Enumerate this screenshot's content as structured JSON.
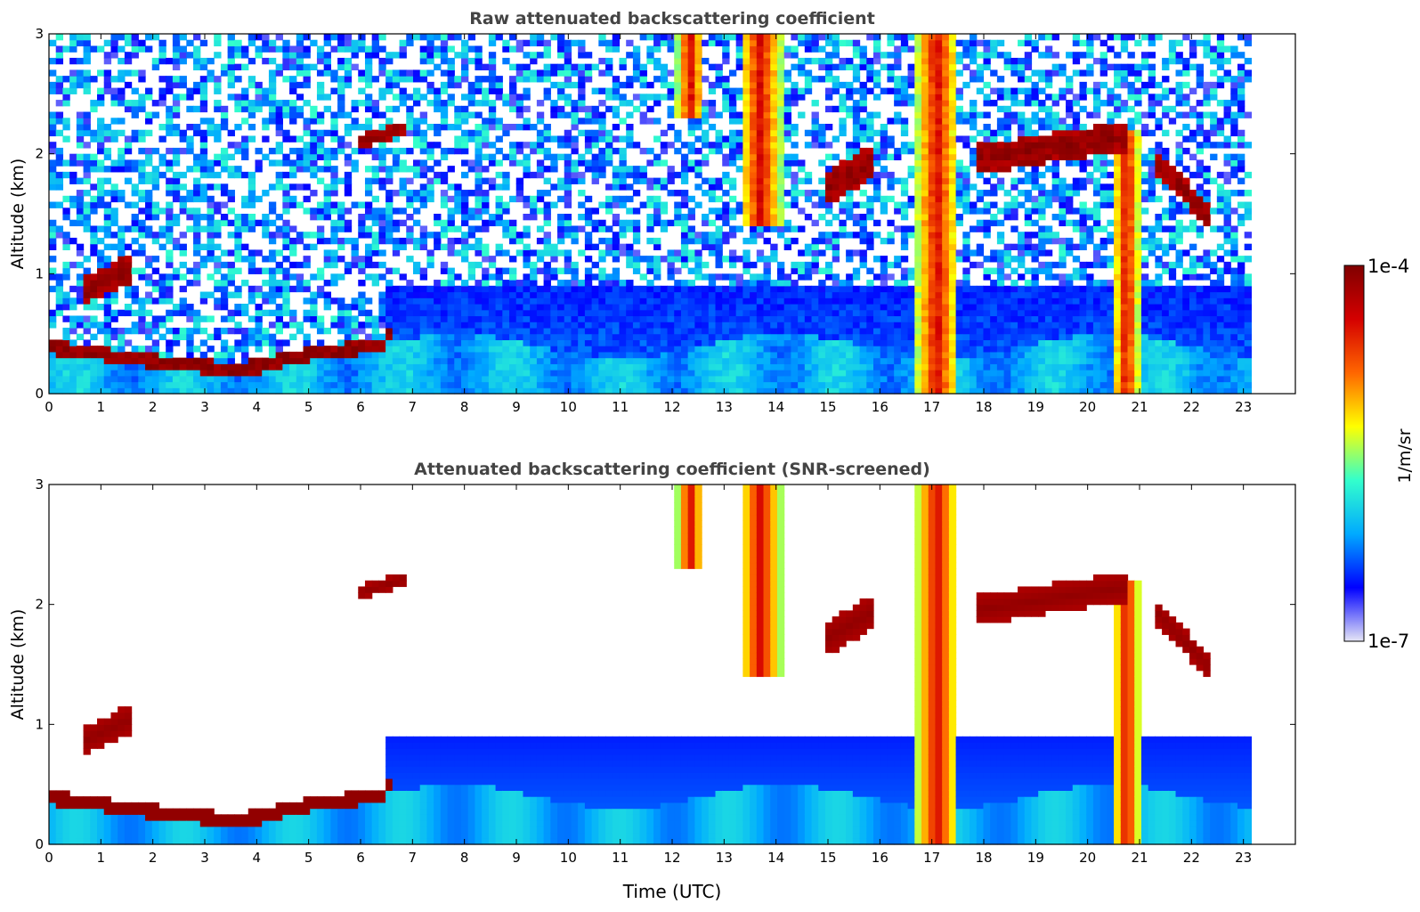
{
  "chart_data": [
    {
      "type": "heatmap",
      "title": "Raw attenuated backscattering coefficient",
      "xlabel": "",
      "ylabel": "Altitude (km)",
      "xlim": [
        0,
        24
      ],
      "ylim": [
        0,
        3
      ],
      "xticks": [
        "0",
        "1",
        "2",
        "3",
        "4",
        "5",
        "6",
        "7",
        "8",
        "9",
        "10",
        "11",
        "12",
        "13",
        "14",
        "15",
        "16",
        "17",
        "18",
        "19",
        "20",
        "21",
        "22",
        "23"
      ],
      "yticks": [
        "0",
        "1",
        "2",
        "3"
      ],
      "screened": false
    },
    {
      "type": "heatmap",
      "title": "Attenuated backscattering coefficient (SNR-screened)",
      "xlabel": "Time (UTC)",
      "ylabel": "Altitude (km)",
      "xlim": [
        0,
        24
      ],
      "ylim": [
        0,
        3
      ],
      "xticks": [
        "0",
        "1",
        "2",
        "3",
        "4",
        "5",
        "6",
        "7",
        "8",
        "9",
        "10",
        "11",
        "12",
        "13",
        "14",
        "15",
        "16",
        "17",
        "18",
        "19",
        "20",
        "21",
        "22",
        "23"
      ],
      "yticks": [
        "0",
        "1",
        "2",
        "3"
      ],
      "screened": true
    }
  ],
  "features": {
    "data_end_hour": 23.15,
    "boundary_layer_top": [
      [
        0,
        0.38
      ],
      [
        0.5,
        0.36
      ],
      [
        1,
        0.33
      ],
      [
        1.5,
        0.3
      ],
      [
        2,
        0.27
      ],
      [
        2.5,
        0.25
      ],
      [
        3,
        0.22
      ],
      [
        3.5,
        0.2
      ],
      [
        4,
        0.22
      ],
      [
        4.5,
        0.28
      ],
      [
        5,
        0.32
      ],
      [
        5.5,
        0.35
      ],
      [
        6,
        0.38
      ],
      [
        6.5,
        0.42
      ]
    ],
    "elevated_layers": [
      {
        "x": [
          0.6,
          1.6
        ],
        "alt": [
          0.85,
          1.05
        ],
        "thickness": 0.12
      },
      {
        "x": [
          6.0,
          6.9
        ],
        "alt": [
          2.1,
          2.22
        ],
        "thickness": 0.06
      },
      {
        "x": [
          14.9,
          15.9
        ],
        "alt": [
          1.7,
          1.95
        ],
        "thickness": 0.14
      },
      {
        "x": [
          17.8,
          20.8
        ],
        "alt": [
          1.95,
          2.15
        ],
        "thickness": 0.12
      },
      {
        "x": [
          21.3,
          22.4
        ],
        "alt": [
          1.95,
          1.45
        ],
        "thickness": 0.1
      }
    ],
    "precip_columns": [
      {
        "x": [
          12.1,
          12.6
        ],
        "top": 3.0,
        "bottom": 2.3
      },
      {
        "x": [
          13.3,
          14.1
        ],
        "top": 3.0,
        "bottom": 1.4
      },
      {
        "x": [
          16.7,
          17.5
        ],
        "top": 3.0,
        "bottom": 0.0
      },
      {
        "x": [
          20.5,
          21.0
        ],
        "top": 2.2,
        "bottom": 0.0
      }
    ]
  },
  "colorbar": {
    "max_label": "1e-4",
    "min_label": "1e-7",
    "unit_label": "1/m/sr",
    "stops": [
      "#e6e6f5",
      "#0000ff",
      "#00aaff",
      "#33ffcc",
      "#ffff00",
      "#ff6600",
      "#d40000",
      "#800000"
    ]
  }
}
